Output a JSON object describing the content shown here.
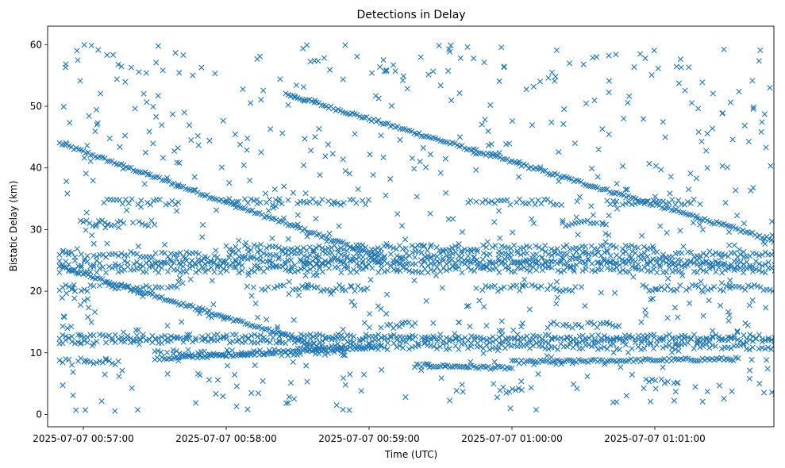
{
  "chart_data": {
    "type": "scatter",
    "title": "Detections in Delay",
    "xlabel": "Time (UTC)",
    "ylabel": "Bistatic Delay (km)",
    "marker": "x",
    "color": "#1f77b4",
    "xlim": [
      "2025-07-07 00:56:45",
      "2025-07-07 01:01:50"
    ],
    "ylim": [
      -2,
      63
    ],
    "x_ticks": [
      {
        "value": "2025-07-07 00:57:00",
        "label": "2025-07-07 00:57:00"
      },
      {
        "value": "2025-07-07 00:58:00",
        "label": "2025-07-07 00:58:00"
      },
      {
        "value": "2025-07-07 00:59:00",
        "label": "2025-07-07 00:59:00"
      },
      {
        "value": "2025-07-07 01:00:00",
        "label": "2025-07-07 01:00:00"
      },
      {
        "value": "2025-07-07 01:01:00",
        "label": "2025-07-07 01:01:00"
      }
    ],
    "y_ticks": [
      0,
      10,
      20,
      30,
      40,
      50,
      60
    ],
    "time_range": [
      "2025-07-07 00:56:50",
      "2025-07-07 01:01:52"
    ],
    "tracks": [
      {
        "start": [
          "2025-07-07 00:56:50",
          44
        ],
        "end": [
          "2025-07-07 00:59:05",
          25.5
        ]
      },
      {
        "start": [
          "2025-07-07 00:58:25",
          52
        ],
        "end": [
          "2025-07-07 01:01:52",
          28
        ]
      },
      {
        "start": [
          "2025-07-07 00:56:50",
          24
        ],
        "end": [
          "2025-07-07 00:58:40",
          11
        ]
      },
      {
        "start": [
          "2025-07-07 00:57:30",
          9
        ],
        "end": [
          "2025-07-07 00:59:05",
          11
        ]
      },
      {
        "start": [
          "2025-07-07 00:59:20",
          8
        ],
        "end": [
          "2025-07-07 01:00:00",
          7.5
        ]
      },
      {
        "start": [
          "2025-07-07 01:00:00",
          8.5
        ],
        "end": [
          "2025-07-07 01:01:35",
          9
        ]
      }
    ],
    "bands": [
      {
        "delay": 26.0,
        "from": "2025-07-07 00:56:50",
        "to": "2025-07-07 01:01:52"
      },
      {
        "delay": 24.5,
        "from": "2025-07-07 00:56:50",
        "to": "2025-07-07 01:01:52"
      },
      {
        "delay": 23.5,
        "from": "2025-07-07 00:56:50",
        "to": "2025-07-07 01:01:52"
      },
      {
        "delay": 25.0,
        "from": "2025-07-07 00:57:30",
        "to": "2025-07-07 01:01:30"
      },
      {
        "delay": 27.0,
        "from": "2025-07-07 00:58:00",
        "to": "2025-07-07 01:01:00"
      },
      {
        "delay": 12.5,
        "from": "2025-07-07 00:56:50",
        "to": "2025-07-07 01:01:52"
      },
      {
        "delay": 12.0,
        "from": "2025-07-07 00:56:50",
        "to": "2025-07-07 01:01:52"
      },
      {
        "delay": 11.0,
        "from": "2025-07-07 00:58:30",
        "to": "2025-07-07 01:01:52"
      },
      {
        "delay": 10.0,
        "from": "2025-07-07 00:57:30",
        "to": "2025-07-07 00:58:50"
      },
      {
        "delay": 20.5,
        "from": "2025-07-07 00:56:50",
        "to": "2025-07-07 00:57:40"
      },
      {
        "delay": 20.5,
        "from": "2025-07-07 00:58:15",
        "to": "2025-07-07 00:59:00"
      },
      {
        "delay": 20.5,
        "from": "2025-07-07 00:59:45",
        "to": "2025-07-07 01:00:30"
      },
      {
        "delay": 20.5,
        "from": "2025-07-07 01:00:55",
        "to": "2025-07-07 01:01:52"
      },
      {
        "delay": 34.5,
        "from": "2025-07-07 00:57:10",
        "to": "2025-07-07 00:57:40"
      },
      {
        "delay": 34.5,
        "from": "2025-07-07 00:58:00",
        "to": "2025-07-07 00:59:00"
      },
      {
        "delay": 34.5,
        "from": "2025-07-07 00:59:45",
        "to": "2025-07-07 01:00:20"
      },
      {
        "delay": 34.5,
        "from": "2025-07-07 01:00:40",
        "to": "2025-07-07 01:01:20"
      },
      {
        "delay": 31.0,
        "from": "2025-07-07 00:57:00",
        "to": "2025-07-07 00:57:30"
      },
      {
        "delay": 31.0,
        "from": "2025-07-07 01:00:20",
        "to": "2025-07-07 01:00:40"
      },
      {
        "delay": 8.5,
        "from": "2025-07-07 00:56:50",
        "to": "2025-07-07 00:57:15"
      },
      {
        "delay": 14.5,
        "from": "2025-07-07 00:59:05",
        "to": "2025-07-07 00:59:20"
      },
      {
        "delay": 14.5,
        "from": "2025-07-07 01:00:15",
        "to": "2025-07-07 01:00:45"
      },
      {
        "delay": 5.5,
        "from": "2025-07-07 01:00:55",
        "to": "2025-07-07 01:01:10"
      },
      {
        "delay": 4.0,
        "from": "2025-07-07 00:59:55",
        "to": "2025-07-07 01:00:05"
      }
    ],
    "scattered_detections": {
      "count": 700,
      "delay_range": [
        0.5,
        60
      ]
    }
  }
}
